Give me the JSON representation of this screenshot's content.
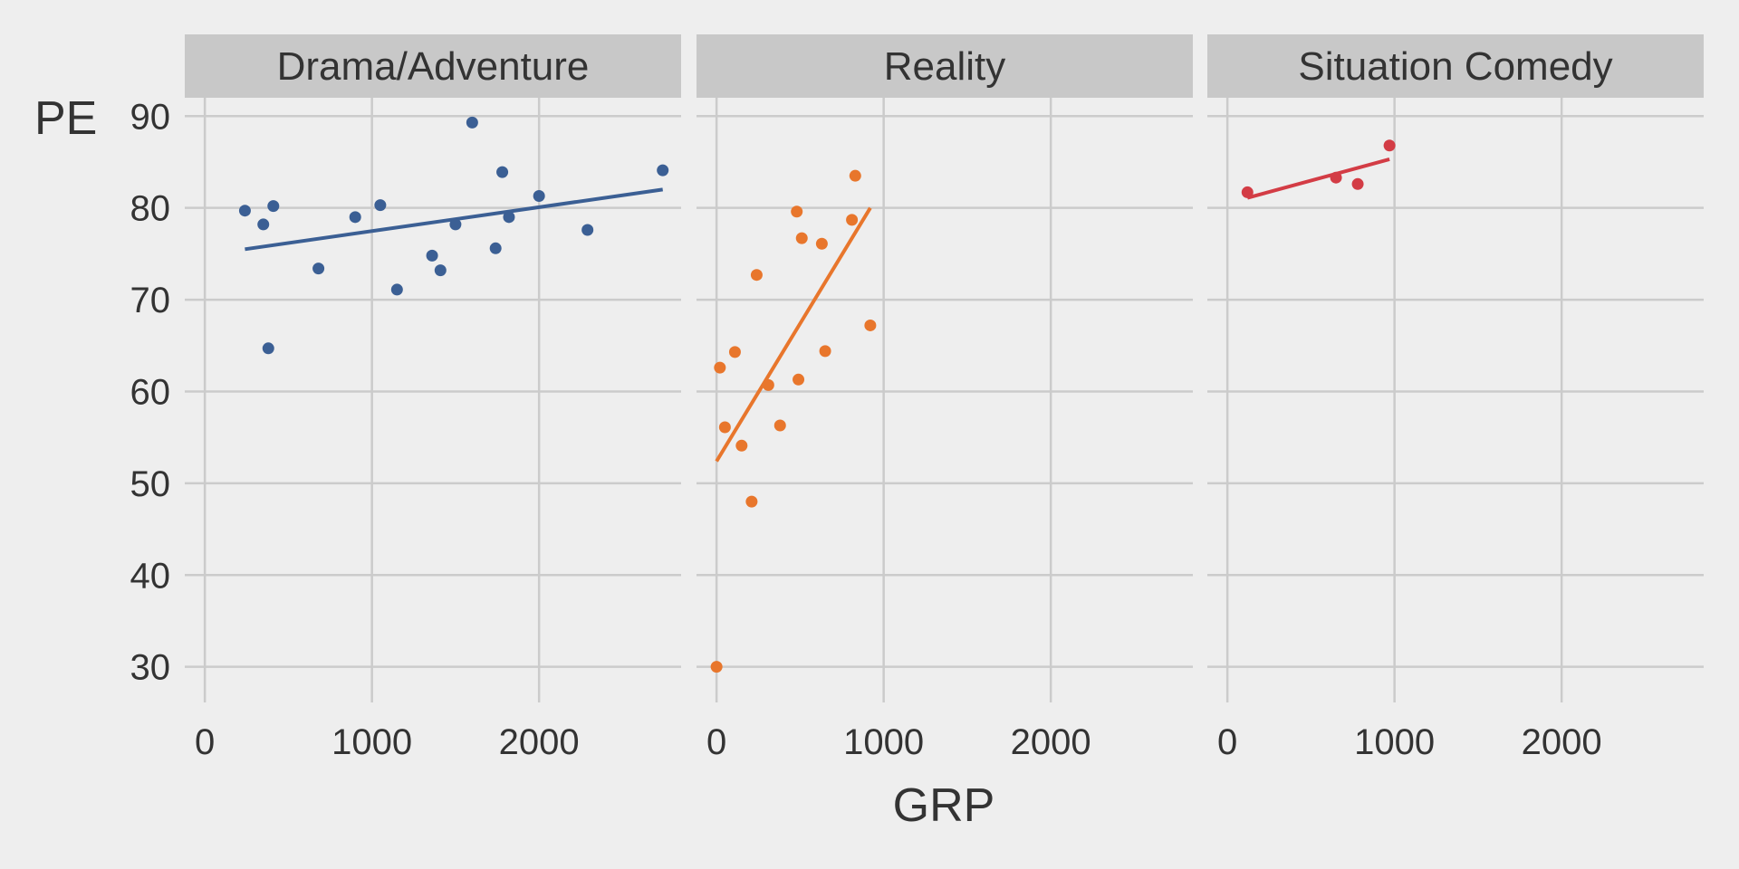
{
  "chart_data": {
    "type": "scatter",
    "xlabel": "GRP",
    "ylabel": "PE",
    "xlim": [
      -120,
      2850
    ],
    "ylim": [
      27.5,
      92
    ],
    "x_ticks": [
      0,
      1000,
      2000
    ],
    "y_ticks": [
      30,
      40,
      50,
      60,
      70,
      80,
      90
    ],
    "grid": true,
    "legend": "none",
    "panels": [
      {
        "facet": "Drama/Adventure",
        "color": "#3b5f94",
        "points": [
          [
            240,
            79.7
          ],
          [
            350,
            78.2
          ],
          [
            380,
            64.7
          ],
          [
            410,
            80.2
          ],
          [
            680,
            73.4
          ],
          [
            900,
            79.0
          ],
          [
            1050,
            80.3
          ],
          [
            1150,
            71.1
          ],
          [
            1360,
            74.8
          ],
          [
            1410,
            73.2
          ],
          [
            1500,
            78.2
          ],
          [
            1600,
            89.3
          ],
          [
            1740,
            75.6
          ],
          [
            1780,
            83.9
          ],
          [
            1820,
            79.0
          ],
          [
            2000,
            81.3
          ],
          [
            2290,
            77.6
          ],
          [
            2740,
            84.1
          ]
        ],
        "trend": [
          [
            240,
            75.5
          ],
          [
            2740,
            82.0
          ]
        ]
      },
      {
        "facet": "Reality",
        "color": "#e8762c",
        "points": [
          [
            0,
            30.0
          ],
          [
            20,
            62.6
          ],
          [
            50,
            56.1
          ],
          [
            110,
            64.3
          ],
          [
            150,
            54.1
          ],
          [
            210,
            48.0
          ],
          [
            240,
            72.7
          ],
          [
            310,
            60.7
          ],
          [
            380,
            56.3
          ],
          [
            480,
            79.6
          ],
          [
            490,
            61.3
          ],
          [
            510,
            76.7
          ],
          [
            630,
            76.1
          ],
          [
            650,
            64.4
          ],
          [
            810,
            78.7
          ],
          [
            830,
            83.5
          ],
          [
            920,
            67.2
          ]
        ],
        "trend": [
          [
            0,
            52.4
          ],
          [
            920,
            80.0
          ]
        ]
      },
      {
        "facet": "Situation Comedy",
        "color": "#d33c45",
        "points": [
          [
            120,
            81.7
          ],
          [
            650,
            83.3
          ],
          [
            780,
            82.6
          ],
          [
            970,
            86.8
          ]
        ],
        "trend": [
          [
            120,
            81.1
          ],
          [
            970,
            85.3
          ]
        ]
      }
    ]
  }
}
